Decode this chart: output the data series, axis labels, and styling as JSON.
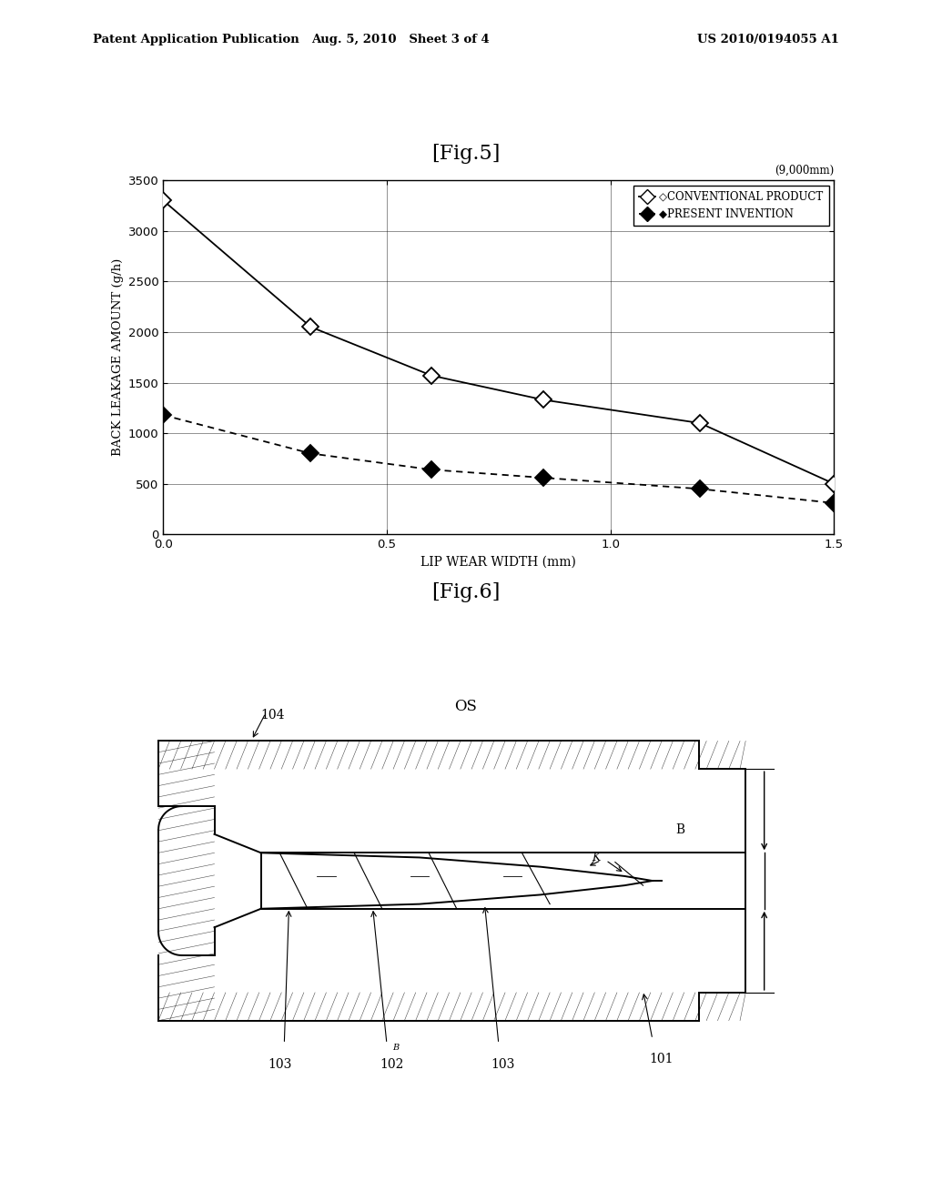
{
  "page_title_left": "Patent Application Publication",
  "page_title_center": "Aug. 5, 2010   Sheet 3 of 4",
  "page_title_right": "US 2010/0194055 A1",
  "fig5_title": "[Fig.5]",
  "fig6_title": "[Fig.6]",
  "graph_note": "(9,000mm)",
  "xlabel": "LIP WEAR WIDTH (mm)",
  "ylabel": "BACK LEAKAGE AMOUNT (g/h)",
  "xlim": [
    0,
    1.5
  ],
  "ylim": [
    0,
    3500
  ],
  "xticks": [
    0,
    0.5,
    1,
    1.5
  ],
  "yticks": [
    0,
    500,
    1000,
    1500,
    2000,
    2500,
    3000,
    3500
  ],
  "conventional_x": [
    0,
    0.33,
    0.6,
    0.85,
    1.2,
    1.5
  ],
  "conventional_y": [
    3300,
    2050,
    1570,
    1330,
    1100,
    500
  ],
  "present_x": [
    0,
    0.33,
    0.6,
    0.85,
    1.2,
    1.5
  ],
  "present_y": [
    1180,
    800,
    640,
    560,
    450,
    310
  ],
  "legend_conventional": "◇CONVENTIONAL PRODUCT",
  "legend_present": "◆PRESENT INVENTION",
  "background_color": "#ffffff",
  "text_color": "#000000"
}
